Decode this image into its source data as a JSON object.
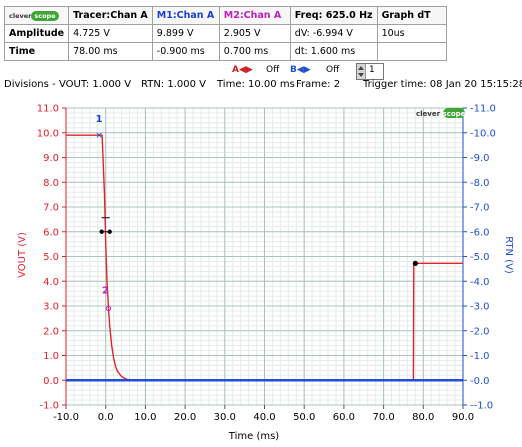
{
  "table": {
    "logo": {
      "left": "clever",
      "right": "scope"
    },
    "headers": [
      "Tracer:Chan A",
      "M1:Chan A",
      "M2:Chan A",
      "Freq: 625.0 Hz",
      "Graph dT"
    ],
    "rows": [
      {
        "label": "Amplitude",
        "cells": [
          "4.725 V",
          "9.899 V",
          "2.905 V",
          "dV: -6.994 V",
          "10us"
        ]
      },
      {
        "label": "Time",
        "cells": [
          "78.00 ms",
          "-0.900 ms",
          "0.700 ms",
          "dt:  1.600 ms",
          ""
        ]
      }
    ],
    "header_colors": [
      "#000000",
      "#1a3fd6",
      "#c020c0",
      "#000000",
      "#000000"
    ]
  },
  "controls": {
    "a_label": "A",
    "a_state": "Off",
    "b_label": "B",
    "b_state": "Off",
    "frame_spin_value": "1"
  },
  "status": {
    "divisions_label": "Divisions -",
    "vout_div": "VOUT: 1.000 V",
    "rtn_div": "RTN: 1.000 V",
    "time_div": "Time: 10.00 ms",
    "frame": "Frame: 2",
    "trigger_time": "Trigger time: 08 Jan 20 15:15:28"
  },
  "chart_data": {
    "type": "line",
    "xlabel": "Time (ms)",
    "ylabel_left": "VOUT (V)",
    "ylabel_right": "RTN (V)",
    "xlim": [
      -10,
      90
    ],
    "ylim": [
      -1,
      11
    ],
    "x_ticks": [
      -10,
      0,
      10,
      20,
      30,
      40,
      50,
      60,
      70,
      80,
      90
    ],
    "x_tick_labels": [
      "-10.0",
      "0.0",
      "10.0",
      "20.0",
      "30.0",
      "40.0",
      "50.0",
      "60.0",
      "70.0",
      "80.0",
      "90.0"
    ],
    "y_ticks": [
      -1,
      0,
      1,
      2,
      3,
      4,
      5,
      6,
      7,
      8,
      9,
      10,
      11
    ],
    "y_tick_labels": [
      "-1.0",
      "0.0",
      "1.0",
      "2.0",
      "3.0",
      "4.0",
      "5.0",
      "6.0",
      "7.0",
      "8.0",
      "9.0",
      "10.0",
      "11.0"
    ],
    "grid": true,
    "minor_grid_per_major": 5,
    "series": [
      {
        "color": "#e8202a",
        "x": [
          -10,
          -0.9,
          -0.3,
          0.0,
          0.3,
          0.7,
          1.0,
          1.5,
          2.0,
          2.5,
          3.0,
          4.0,
          5.0,
          6.0,
          8.0,
          77.5,
          77.6,
          78.0,
          90.0
        ],
        "y": [
          9.9,
          9.899,
          7.5,
          5.6,
          4.1,
          2.905,
          2.2,
          1.4,
          0.9,
          0.55,
          0.35,
          0.15,
          0.06,
          0.02,
          0.0,
          0.0,
          4.7,
          4.725,
          4.725
        ]
      },
      {
        "color": "#1f4fd6",
        "x": [
          -10,
          90
        ],
        "y": [
          0.0,
          0.0
        ]
      }
    ],
    "markers": [
      {
        "label": "1",
        "x": -0.9,
        "y": 9.899,
        "color": "#1a3fd6"
      },
      {
        "label": "2",
        "x": 0.7,
        "y": 2.905,
        "color": "#c020c0"
      }
    ],
    "tracer_x": 78.0,
    "tracer_y": 4.725,
    "trigger_y": 6.0,
    "logo": {
      "left": "clever",
      "right": "scope"
    }
  }
}
